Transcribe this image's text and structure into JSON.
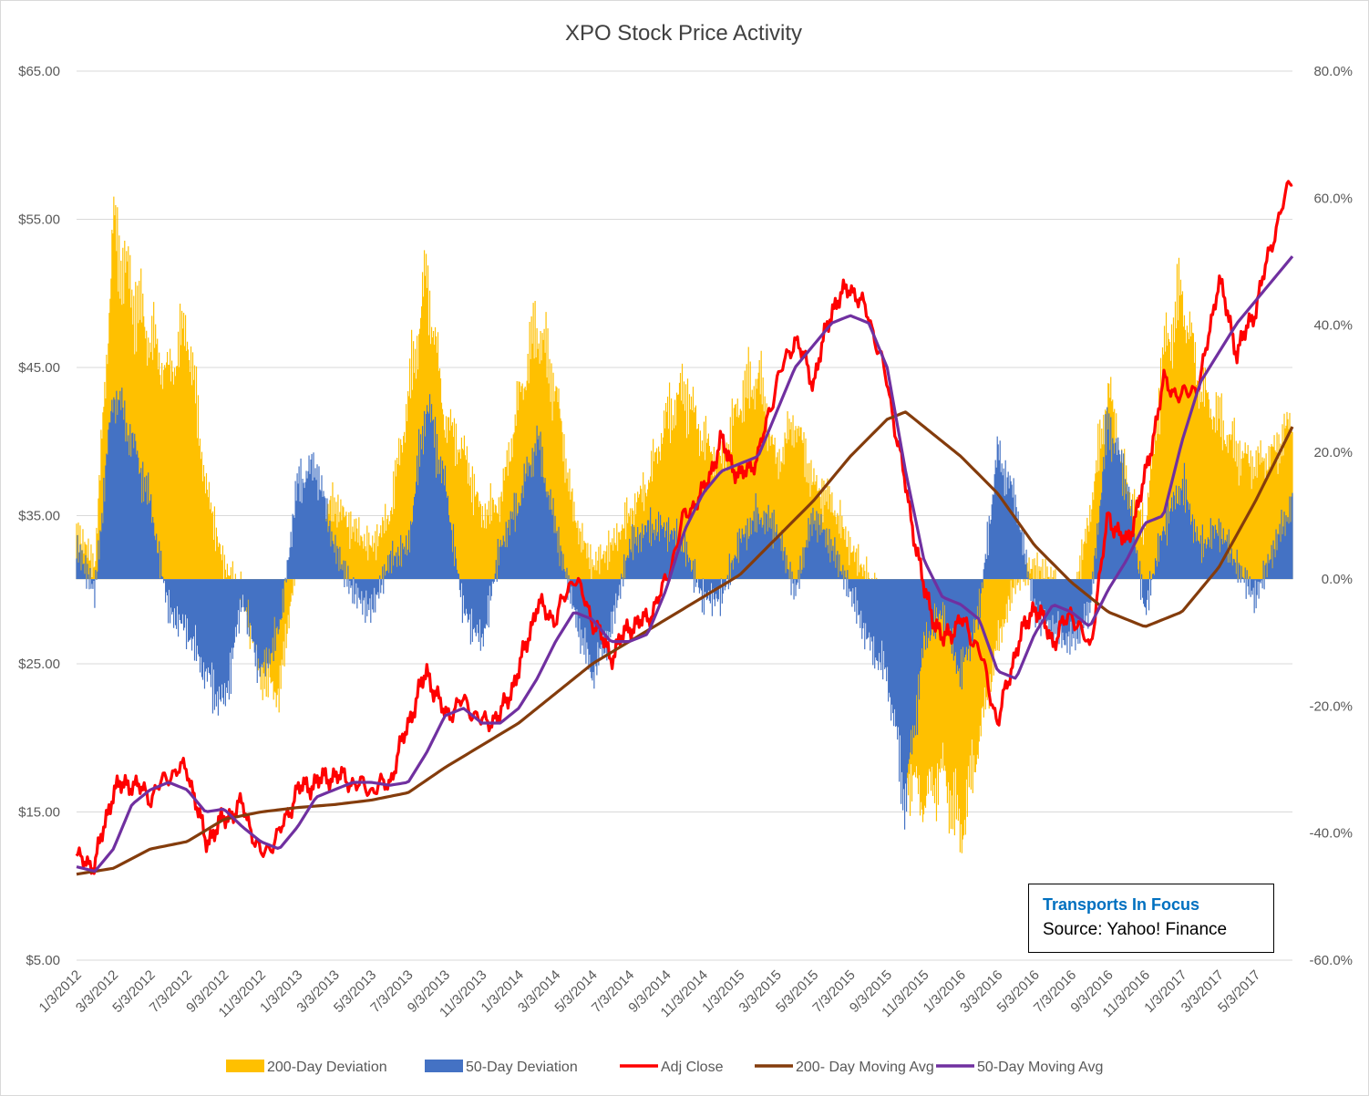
{
  "chart_data": {
    "type": "line",
    "title": "XPO Stock Price Activity",
    "y_left": {
      "ticks": [
        "$65.00",
        "$55.00",
        "$45.00",
        "$35.00",
        "$25.00",
        "$15.00",
        "$5.00"
      ],
      "min": 5,
      "max": 65
    },
    "y_right": {
      "ticks": [
        "80.0%",
        "60.0%",
        "40.0%",
        "20.0%",
        "0.0%",
        "-20.0%",
        "-40.0%",
        "-60.0%"
      ],
      "min": -60,
      "max": 80
    },
    "x_tick_labels": [
      "1/3/2012",
      "3/3/2012",
      "5/3/2012",
      "7/3/2012",
      "9/3/2012",
      "11/3/2012",
      "1/3/2013",
      "3/3/2013",
      "5/3/2013",
      "7/3/2013",
      "9/3/2013",
      "11/3/2013",
      "1/3/2014",
      "3/3/2014",
      "5/3/2014",
      "7/3/2014",
      "9/3/2014",
      "11/3/2014",
      "1/3/2015",
      "3/3/2015",
      "5/3/2015",
      "7/3/2015",
      "9/3/2015",
      "11/3/2015",
      "1/3/2016",
      "3/3/2016",
      "5/3/2016",
      "7/3/2016",
      "9/3/2016",
      "11/3/2016",
      "1/3/2017",
      "3/3/2017",
      "5/3/2017"
    ],
    "x_months": [
      0,
      2,
      4,
      6,
      8,
      10,
      12,
      14,
      16,
      18,
      20,
      22,
      24,
      26,
      28,
      30,
      32,
      34,
      36,
      38,
      40,
      42,
      44,
      46,
      48,
      50,
      52,
      54,
      56,
      58,
      60,
      62,
      64
    ],
    "x_last_month": 66,
    "series": [
      {
        "name": "200-Day Deviation",
        "axis": "right",
        "kind": "area",
        "color": "#ffc000",
        "points": [
          [
            0,
            8
          ],
          [
            1,
            2
          ],
          [
            2,
            55
          ],
          [
            3,
            45
          ],
          [
            4,
            38
          ],
          [
            5,
            32
          ],
          [
            6,
            40
          ],
          [
            7,
            15
          ],
          [
            8,
            2
          ],
          [
            9,
            -2
          ],
          [
            10,
            -15
          ],
          [
            11,
            -18
          ],
          [
            12,
            5
          ],
          [
            13,
            8
          ],
          [
            14,
            12
          ],
          [
            15,
            8
          ],
          [
            16,
            5
          ],
          [
            17,
            10
          ],
          [
            18,
            28
          ],
          [
            19,
            48
          ],
          [
            20,
            25
          ],
          [
            21,
            20
          ],
          [
            22,
            10
          ],
          [
            23,
            12
          ],
          [
            24,
            28
          ],
          [
            25,
            40
          ],
          [
            26,
            30
          ],
          [
            27,
            10
          ],
          [
            28,
            2
          ],
          [
            29,
            5
          ],
          [
            30,
            10
          ],
          [
            31,
            15
          ],
          [
            32,
            25
          ],
          [
            33,
            30
          ],
          [
            34,
            22
          ],
          [
            35,
            18
          ],
          [
            36,
            28
          ],
          [
            37,
            32
          ],
          [
            38,
            18
          ],
          [
            39,
            25
          ],
          [
            40,
            15
          ],
          [
            41,
            12
          ],
          [
            42,
            5
          ],
          [
            43,
            0
          ],
          [
            44,
            -5
          ],
          [
            45,
            -30
          ],
          [
            46,
            -35
          ],
          [
            47,
            -30
          ],
          [
            48,
            -40
          ],
          [
            49,
            -25
          ],
          [
            50,
            -10
          ],
          [
            51,
            0
          ],
          [
            52,
            2
          ],
          [
            53,
            0
          ],
          [
            54,
            -5
          ],
          [
            55,
            10
          ],
          [
            56,
            30
          ],
          [
            57,
            15
          ],
          [
            58,
            8
          ],
          [
            59,
            35
          ],
          [
            60,
            45
          ],
          [
            61,
            30
          ],
          [
            62,
            25
          ],
          [
            63,
            20
          ],
          [
            64,
            18
          ],
          [
            65,
            20
          ],
          [
            66,
            25
          ]
        ]
      },
      {
        "name": "50-Day Deviation",
        "axis": "right",
        "kind": "area",
        "color": "#4472c4",
        "points": [
          [
            0,
            5
          ],
          [
            1,
            -2
          ],
          [
            2,
            30
          ],
          [
            3,
            22
          ],
          [
            4,
            12
          ],
          [
            5,
            -5
          ],
          [
            6,
            -8
          ],
          [
            7,
            -15
          ],
          [
            8,
            -20
          ],
          [
            9,
            -3
          ],
          [
            10,
            -15
          ],
          [
            11,
            -8
          ],
          [
            12,
            15
          ],
          [
            13,
            18
          ],
          [
            14,
            5
          ],
          [
            15,
            -2
          ],
          [
            16,
            -5
          ],
          [
            17,
            3
          ],
          [
            18,
            5
          ],
          [
            19,
            28
          ],
          [
            20,
            15
          ],
          [
            21,
            -5
          ],
          [
            22,
            -10
          ],
          [
            23,
            5
          ],
          [
            24,
            12
          ],
          [
            25,
            22
          ],
          [
            26,
            8
          ],
          [
            27,
            -5
          ],
          [
            28,
            -15
          ],
          [
            29,
            -8
          ],
          [
            30,
            5
          ],
          [
            31,
            8
          ],
          [
            32,
            8
          ],
          [
            33,
            5
          ],
          [
            34,
            -3
          ],
          [
            35,
            -3
          ],
          [
            36,
            6
          ],
          [
            37,
            10
          ],
          [
            38,
            8
          ],
          [
            39,
            -2
          ],
          [
            40,
            10
          ],
          [
            41,
            5
          ],
          [
            42,
            -2
          ],
          [
            43,
            -10
          ],
          [
            44,
            -15
          ],
          [
            45,
            -35
          ],
          [
            46,
            -10
          ],
          [
            47,
            -5
          ],
          [
            48,
            -15
          ],
          [
            49,
            -5
          ],
          [
            50,
            20
          ],
          [
            51,
            12
          ],
          [
            52,
            -5
          ],
          [
            53,
            -8
          ],
          [
            54,
            -10
          ],
          [
            55,
            -5
          ],
          [
            56,
            25
          ],
          [
            57,
            15
          ],
          [
            58,
            -5
          ],
          [
            59,
            8
          ],
          [
            60,
            15
          ],
          [
            61,
            5
          ],
          [
            62,
            8
          ],
          [
            63,
            2
          ],
          [
            64,
            -3
          ],
          [
            65,
            5
          ],
          [
            66,
            12
          ]
        ]
      },
      {
        "name": "Adj Close",
        "axis": "left",
        "kind": "line",
        "color": "#ff0000",
        "points": [
          [
            0,
            11.8
          ],
          [
            1,
            11.5
          ],
          [
            2,
            16.5
          ],
          [
            3,
            17
          ],
          [
            4,
            16
          ],
          [
            5,
            17.5
          ],
          [
            6,
            18
          ],
          [
            7,
            13
          ],
          [
            8,
            14.5
          ],
          [
            9,
            15.5
          ],
          [
            10,
            12
          ],
          [
            11,
            13.5
          ],
          [
            12,
            16.5
          ],
          [
            13,
            17
          ],
          [
            14,
            17.5
          ],
          [
            15,
            17
          ],
          [
            16,
            16.5
          ],
          [
            17,
            17
          ],
          [
            18,
            21
          ],
          [
            19,
            24.5
          ],
          [
            20,
            21.5
          ],
          [
            21,
            22.5
          ],
          [
            22,
            21
          ],
          [
            23,
            21.5
          ],
          [
            24,
            24.5
          ],
          [
            25,
            29
          ],
          [
            26,
            28
          ],
          [
            27,
            31
          ],
          [
            28,
            28
          ],
          [
            29,
            25.5
          ],
          [
            30,
            27.5
          ],
          [
            31,
            28
          ],
          [
            32,
            30.5
          ],
          [
            33,
            35
          ],
          [
            34,
            36.5
          ],
          [
            35,
            40
          ],
          [
            36,
            37.5
          ],
          [
            37,
            39
          ],
          [
            38,
            44
          ],
          [
            39,
            47
          ],
          [
            40,
            44
          ],
          [
            41,
            49
          ],
          [
            42,
            50.5
          ],
          [
            43,
            48.5
          ],
          [
            44,
            44
          ],
          [
            45,
            37
          ],
          [
            46,
            30
          ],
          [
            47,
            26.5
          ],
          [
            48,
            28
          ],
          [
            49,
            26
          ],
          [
            50,
            21
          ],
          [
            51,
            26
          ],
          [
            52,
            29
          ],
          [
            53,
            26.5
          ],
          [
            54,
            28.5
          ],
          [
            55,
            26
          ],
          [
            56,
            35
          ],
          [
            57,
            33
          ],
          [
            58,
            37.5
          ],
          [
            59,
            44
          ],
          [
            60,
            43
          ],
          [
            61,
            44
          ],
          [
            62,
            51
          ],
          [
            63,
            46
          ],
          [
            64,
            49
          ],
          [
            65,
            54
          ],
          [
            66,
            58
          ]
        ]
      },
      {
        "name": "200- Day Moving Avg",
        "axis": "left",
        "kind": "line",
        "color": "#843c0c",
        "points": [
          [
            0,
            10.8
          ],
          [
            2,
            11.2
          ],
          [
            4,
            12.5
          ],
          [
            6,
            13
          ],
          [
            8,
            14.5
          ],
          [
            10,
            15
          ],
          [
            12,
            15.3
          ],
          [
            14,
            15.5
          ],
          [
            16,
            15.8
          ],
          [
            18,
            16.3
          ],
          [
            20,
            18
          ],
          [
            22,
            19.5
          ],
          [
            24,
            21
          ],
          [
            26,
            23
          ],
          [
            28,
            25
          ],
          [
            30,
            26.5
          ],
          [
            32,
            28
          ],
          [
            34,
            29.5
          ],
          [
            36,
            31
          ],
          [
            38,
            33.5
          ],
          [
            40,
            36
          ],
          [
            42,
            39
          ],
          [
            44,
            41.5
          ],
          [
            45,
            42
          ],
          [
            46,
            41
          ],
          [
            48,
            39
          ],
          [
            50,
            36.5
          ],
          [
            52,
            33
          ],
          [
            54,
            30.5
          ],
          [
            56,
            28.5
          ],
          [
            58,
            27.5
          ],
          [
            60,
            28.5
          ],
          [
            62,
            31.5
          ],
          [
            64,
            36
          ],
          [
            66,
            41
          ]
        ]
      },
      {
        "name": "50-Day Moving Avg",
        "axis": "left",
        "kind": "line",
        "color": "#7030a0",
        "points": [
          [
            0,
            11.3
          ],
          [
            1,
            11
          ],
          [
            2,
            12.5
          ],
          [
            3,
            15.5
          ],
          [
            4,
            16.5
          ],
          [
            5,
            17
          ],
          [
            6,
            16.5
          ],
          [
            7,
            15
          ],
          [
            8,
            15.2
          ],
          [
            9,
            14
          ],
          [
            10,
            13
          ],
          [
            11,
            12.5
          ],
          [
            12,
            14
          ],
          [
            13,
            16
          ],
          [
            14,
            16.5
          ],
          [
            15,
            17
          ],
          [
            16,
            17
          ],
          [
            17,
            16.8
          ],
          [
            18,
            17
          ],
          [
            19,
            19
          ],
          [
            20,
            21.5
          ],
          [
            21,
            22
          ],
          [
            22,
            21
          ],
          [
            23,
            21
          ],
          [
            24,
            22
          ],
          [
            25,
            24
          ],
          [
            26,
            26.5
          ],
          [
            27,
            28.5
          ],
          [
            28,
            28
          ],
          [
            29,
            26.5
          ],
          [
            30,
            26.5
          ],
          [
            31,
            27
          ],
          [
            32,
            30
          ],
          [
            33,
            34
          ],
          [
            34,
            36.5
          ],
          [
            35,
            38
          ],
          [
            36,
            38.5
          ],
          [
            37,
            39
          ],
          [
            38,
            42
          ],
          [
            39,
            45
          ],
          [
            40,
            46.5
          ],
          [
            41,
            48
          ],
          [
            42,
            48.5
          ],
          [
            43,
            48
          ],
          [
            44,
            45
          ],
          [
            45,
            38
          ],
          [
            46,
            32
          ],
          [
            47,
            29.5
          ],
          [
            48,
            29
          ],
          [
            49,
            28
          ],
          [
            50,
            24.5
          ],
          [
            51,
            24
          ],
          [
            52,
            27
          ],
          [
            53,
            29
          ],
          [
            54,
            28.5
          ],
          [
            55,
            27.5
          ],
          [
            56,
            30
          ],
          [
            57,
            32
          ],
          [
            58,
            34.5
          ],
          [
            59,
            35
          ],
          [
            60,
            40
          ],
          [
            61,
            44
          ],
          [
            62,
            46
          ],
          [
            63,
            48
          ],
          [
            64,
            49.5
          ],
          [
            65,
            51
          ],
          [
            66,
            52.5
          ]
        ]
      }
    ],
    "legend_position": "bottom",
    "grid": true
  },
  "note": {
    "line1": "Transports In Focus",
    "line2": "Source: Yahoo! Finance"
  }
}
